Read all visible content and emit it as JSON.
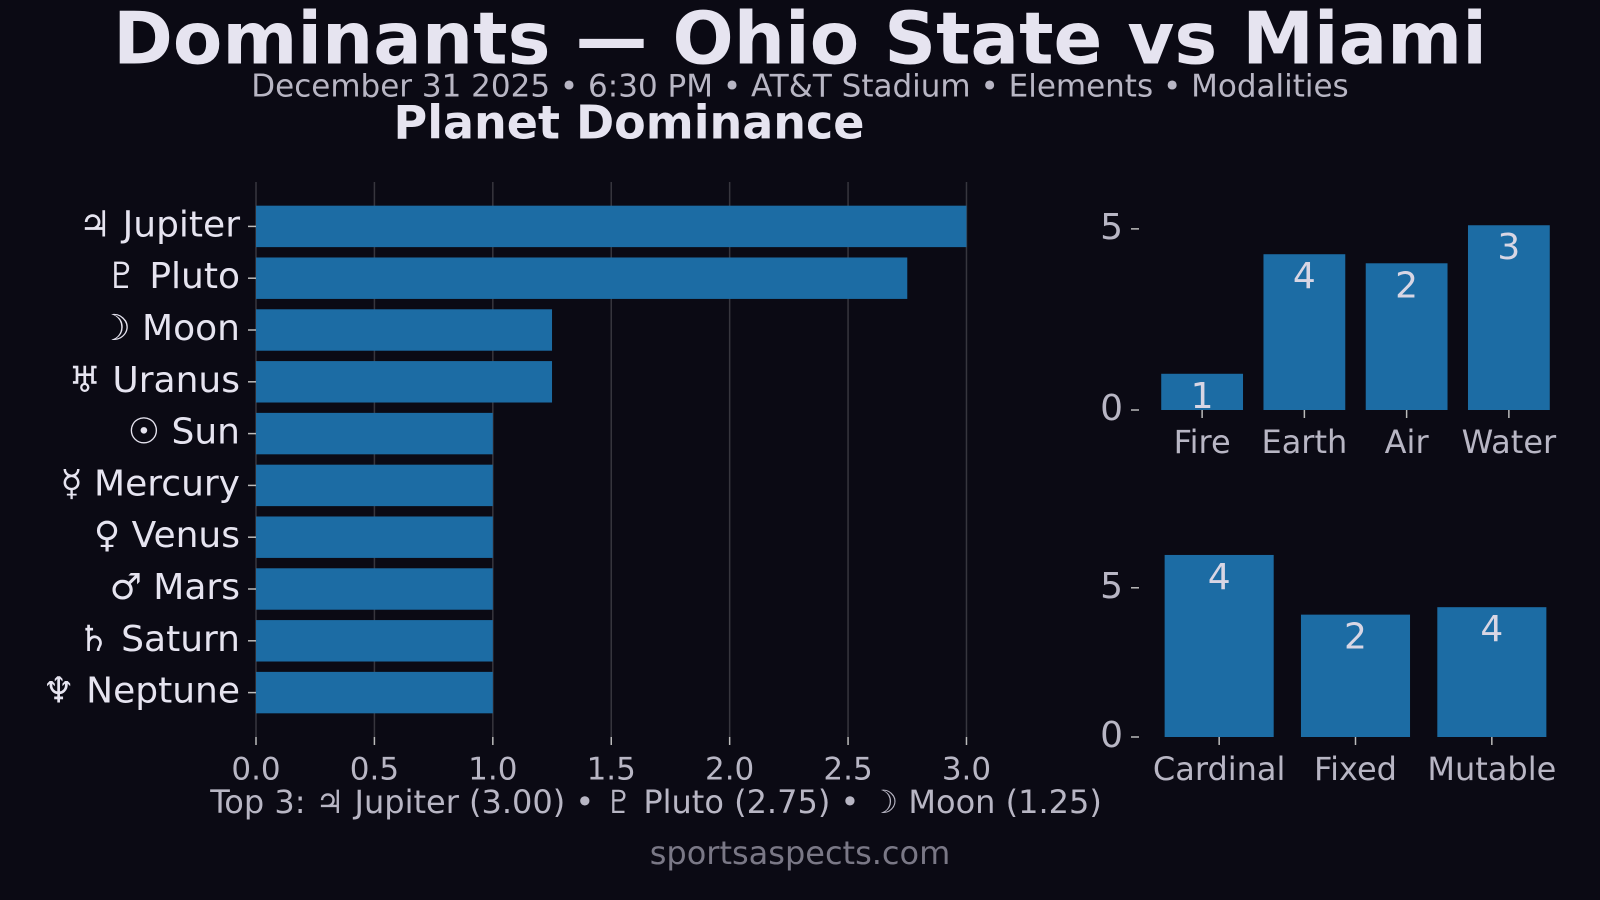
{
  "title": "Dominants — Ohio State vs Miami",
  "subtitle": "December 31 2025 • 6:30 PM • AT&T Stadium • Elements • Modalities",
  "footer": "sportsaspects.com",
  "chart_data": [
    {
      "type": "barh",
      "title": "Planet Dominance",
      "categories": [
        "♃ Jupiter",
        "♇ Pluto",
        "☽ Moon",
        "♅ Uranus",
        "☉ Sun",
        "☿ Mercury",
        "♀ Venus",
        "♂ Mars",
        "♄ Saturn",
        "♆ Neptune"
      ],
      "values": [
        3.0,
        2.75,
        1.25,
        1.25,
        1.0,
        1.0,
        1.0,
        1.0,
        1.0,
        1.0
      ],
      "color": "#1c6ca4",
      "xlim": [
        0,
        3.15
      ],
      "xticks": [
        {
          "value": 0,
          "label": "0.0"
        },
        0.5,
        {
          "value": 1,
          "label": "1.0"
        },
        1.5,
        {
          "value": 2,
          "label": "2.0"
        },
        2.5,
        {
          "value": 3,
          "label": "3.0"
        }
      ],
      "grid": true,
      "annotation": "Top 3: ♃ Jupiter (3.00) • ♇ Pluto (2.75) • ☽ Moon (1.25)"
    },
    {
      "type": "bar",
      "categories": [
        "Fire",
        "Earth",
        "Air",
        "Water"
      ],
      "values": [
        1.0,
        4.3,
        4.05,
        5.1
      ],
      "counts": [
        1,
        4,
        2,
        3
      ],
      "color": "#1c6ca4",
      "ylim": [
        0,
        5.3
      ],
      "yticks": [
        0,
        5
      ]
    },
    {
      "type": "bar",
      "categories": [
        "Cardinal",
        "Fixed",
        "Mutable"
      ],
      "values": [
        6.1,
        4.1,
        4.35
      ],
      "counts": [
        4,
        2,
        4
      ],
      "color": "#1c6ca4",
      "ylim": [
        0,
        6.4
      ],
      "yticks": [
        0,
        5
      ]
    }
  ]
}
